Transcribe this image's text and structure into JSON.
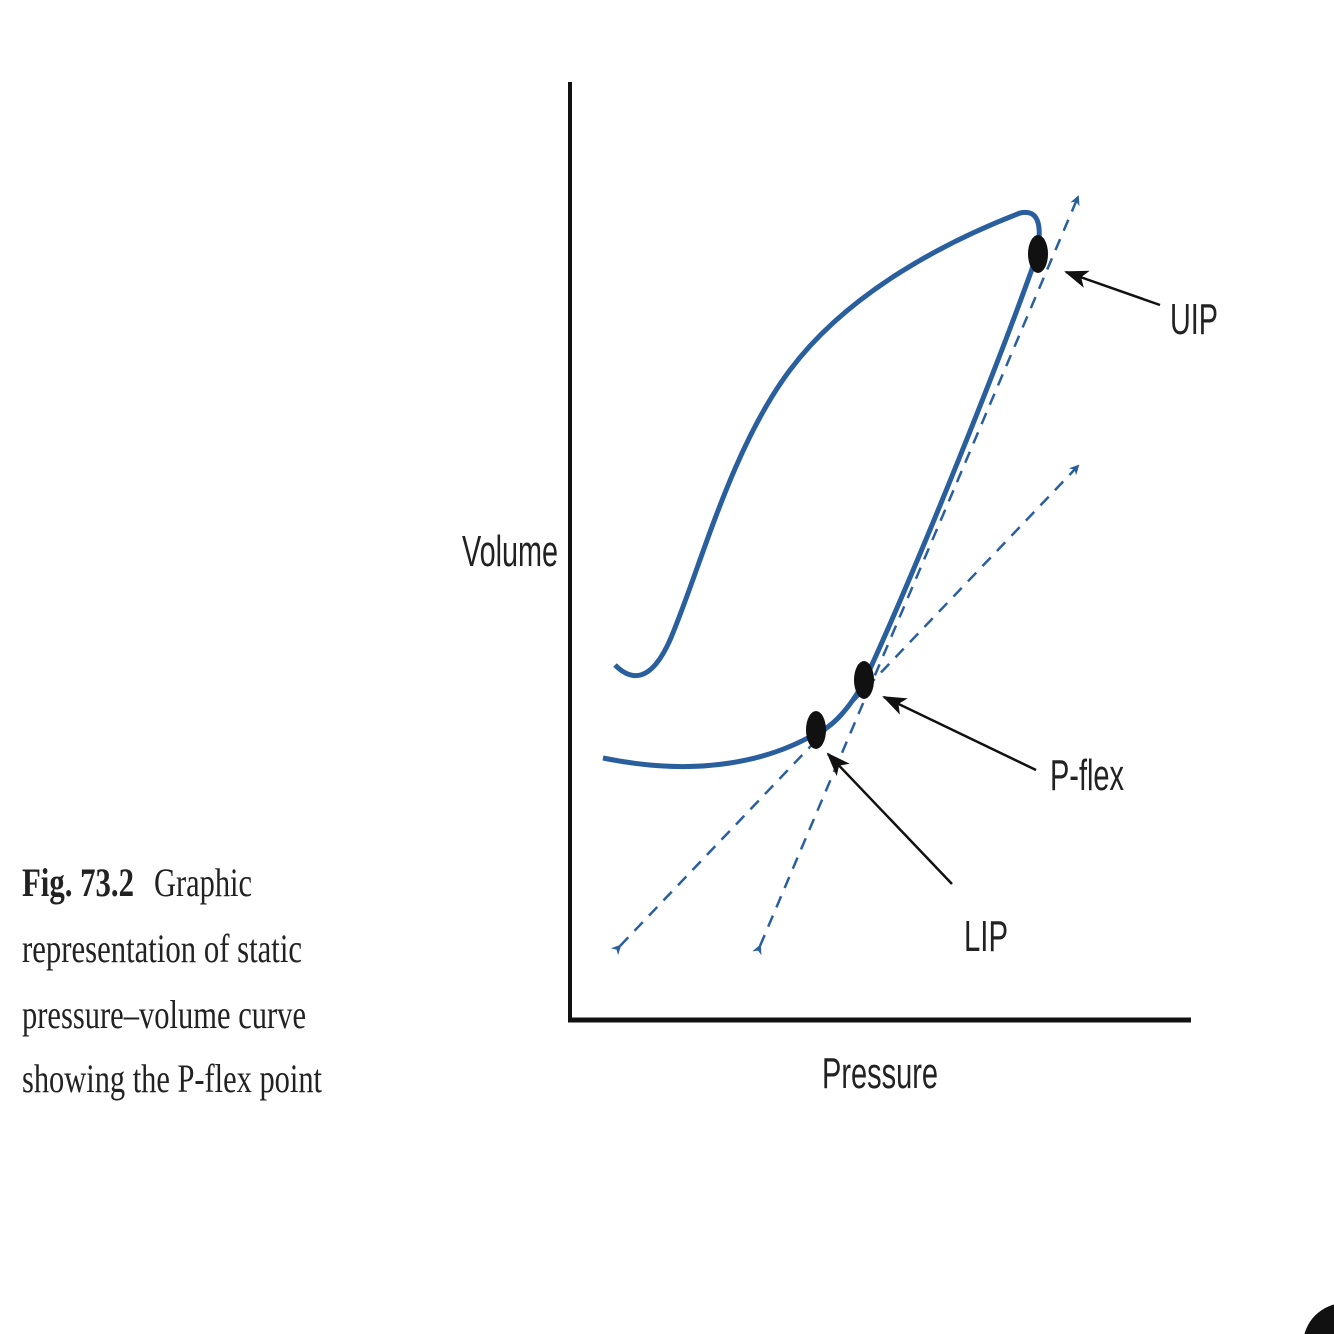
{
  "axes": {
    "y_label": "Volume",
    "x_label": "Pressure"
  },
  "points": {
    "uip": "UIP",
    "pflex": "P-flex",
    "lip": "LIP"
  },
  "caption": {
    "label": "Fig. 73.2",
    "lines": [
      "Graphic",
      "representation of static",
      "pressure–volume curve",
      "showing the P-flex point"
    ]
  }
}
